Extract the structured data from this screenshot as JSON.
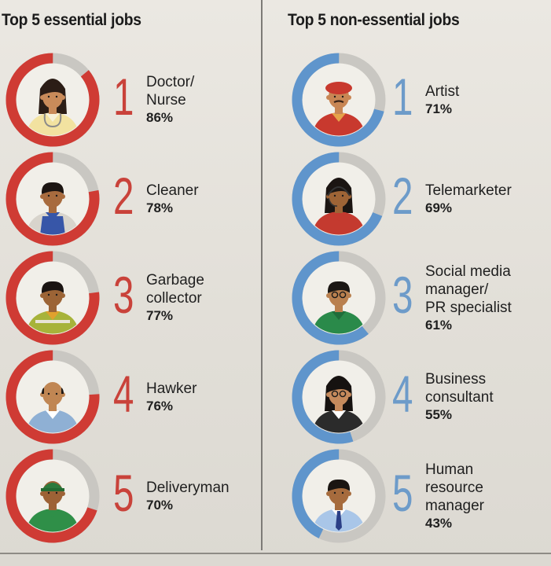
{
  "essential": {
    "title": "Top 5 essential jobs",
    "color": "#cf3b34",
    "items": [
      {
        "rank": "1",
        "label": "Doctor/\nNurse",
        "value": "86%",
        "icon": "doctor-nurse-icon"
      },
      {
        "rank": "2",
        "label": "Cleaner",
        "value": "78%",
        "icon": "cleaner-icon"
      },
      {
        "rank": "3",
        "label": "Garbage\ncollector",
        "value": "77%",
        "icon": "garbage-collector-icon"
      },
      {
        "rank": "4",
        "label": "Hawker",
        "value": "76%",
        "icon": "hawker-icon"
      },
      {
        "rank": "5",
        "label": "Deliveryman",
        "value": "70%",
        "icon": "deliveryman-icon"
      }
    ]
  },
  "nonessential": {
    "title": "Top 5 non-essential jobs",
    "color": "#5f95cc",
    "items": [
      {
        "rank": "1",
        "label": "Artist",
        "value": "71%",
        "icon": "artist-icon"
      },
      {
        "rank": "2",
        "label": "Telemarketer",
        "value": "69%",
        "icon": "telemarketer-icon"
      },
      {
        "rank": "3",
        "label": "Social media\nmanager/\nPR specialist",
        "value": "61%",
        "icon": "social-media-manager-icon"
      },
      {
        "rank": "4",
        "label": "Business\nconsultant",
        "value": "55%",
        "icon": "business-consultant-icon"
      },
      {
        "rank": "5",
        "label": "Human\nresource\nmanager",
        "value": "43%",
        "icon": "hr-manager-icon"
      }
    ]
  },
  "chart_data": [
    {
      "type": "pie",
      "title": "Top 5 essential jobs",
      "categories": [
        "Doctor/Nurse",
        "Cleaner",
        "Garbage collector",
        "Hawker",
        "Deliveryman"
      ],
      "values": [
        86,
        78,
        77,
        76,
        70
      ]
    },
    {
      "type": "pie",
      "title": "Top 5 non-essential jobs",
      "categories": [
        "Artist",
        "Telemarketer",
        "Social media manager/PR specialist",
        "Business consultant",
        "Human resource manager"
      ],
      "values": [
        71,
        69,
        61,
        55,
        43
      ]
    }
  ]
}
